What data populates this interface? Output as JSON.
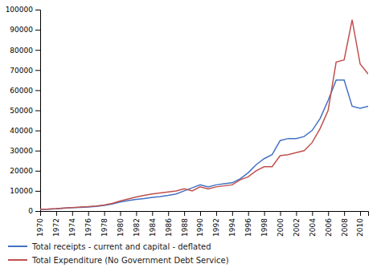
{
  "chart_data": {
    "type": "line",
    "x": [
      1970,
      1971,
      1972,
      1973,
      1974,
      1975,
      1976,
      1977,
      1978,
      1979,
      1980,
      1981,
      1982,
      1983,
      1984,
      1985,
      1986,
      1987,
      1988,
      1989,
      1990,
      1991,
      1992,
      1993,
      1994,
      1995,
      1996,
      1997,
      1998,
      1999,
      2000,
      2001,
      2002,
      2003,
      2004,
      2005,
      2006,
      2007,
      2008,
      2009,
      2010,
      2011
    ],
    "series": [
      {
        "name": "Total receipts - current and capital - deflated",
        "color": "#4472c4",
        "values": [
          800,
          900,
          1100,
          1400,
          1700,
          1800,
          2000,
          2300,
          2800,
          3500,
          4500,
          5200,
          5800,
          6200,
          6800,
          7200,
          7800,
          8500,
          10000,
          11500,
          13000,
          12000,
          13000,
          13500,
          14000,
          16000,
          19000,
          23000,
          26000,
          28000,
          35000,
          36000,
          36000,
          37000,
          40000,
          46000,
          55000,
          65000,
          65000,
          52000,
          51000,
          52000
        ]
      },
      {
        "name": "Total Expenditure (No Government Debt Service)",
        "color": "#c0504d",
        "values": [
          900,
          1000,
          1200,
          1500,
          1700,
          2000,
          2200,
          2500,
          3000,
          3800,
          5000,
          6000,
          7000,
          7800,
          8500,
          9000,
          9500,
          10000,
          11000,
          10000,
          12000,
          11000,
          12000,
          12500,
          13000,
          15500,
          17000,
          20000,
          22000,
          22000,
          27500,
          28000,
          29000,
          30000,
          34000,
          41000,
          50000,
          74000,
          75000,
          95000,
          73000,
          68000
        ]
      }
    ],
    "xlim": [
      1970,
      2011
    ],
    "xticks": [
      1970,
      1972,
      1974,
      1976,
      1978,
      1980,
      1982,
      1984,
      1986,
      1988,
      1990,
      1992,
      1994,
      1996,
      1998,
      2000,
      2002,
      2004,
      2006,
      2008,
      2010
    ],
    "ylim": [
      0,
      100000
    ],
    "yticks": [
      0,
      10000,
      20000,
      30000,
      40000,
      50000,
      60000,
      70000,
      80000,
      90000,
      100000
    ],
    "grid": false,
    "legend": "bottom"
  }
}
